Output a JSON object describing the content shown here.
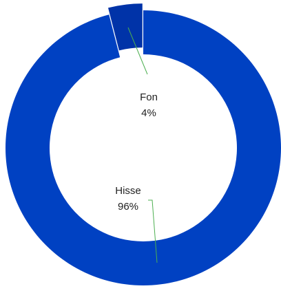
{
  "chart_data": {
    "type": "pie",
    "variant": "doughnut",
    "title": "",
    "categories": [
      "Fon",
      "Hisse"
    ],
    "values": [
      4,
      96
    ],
    "labels": [
      {
        "name": "Fon",
        "value": "4%"
      },
      {
        "name": "Hisse",
        "value": "96%"
      }
    ],
    "colors": {
      "Fon": "#0033a8",
      "Hisse": "#0041c2",
      "leader_line": "#4caf50"
    },
    "legend": "none",
    "exploded_slice": "Fon"
  }
}
